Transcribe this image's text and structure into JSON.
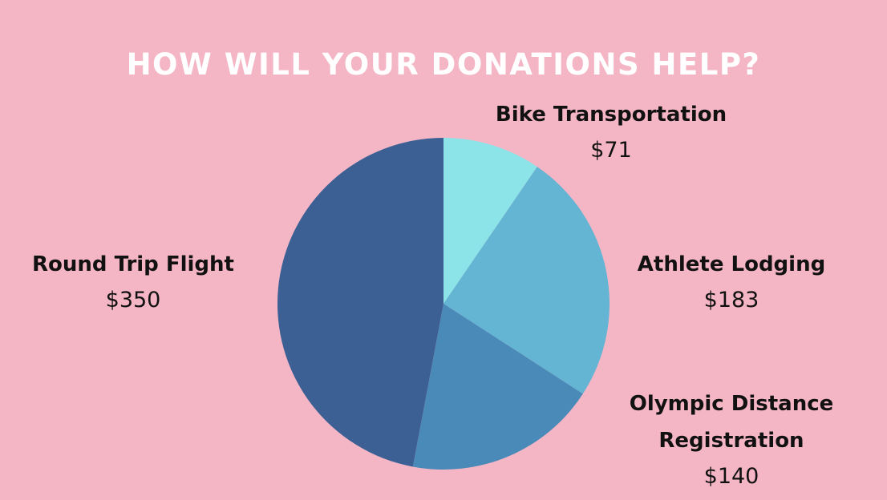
{
  "title": "HOW WILL YOUR DONATIONS HELP?",
  "chart_data": {
    "type": "pie",
    "title": "HOW WILL YOUR DONATIONS HELP?",
    "slices": [
      {
        "key": "bike",
        "label": "Bike Transportation",
        "value": 71,
        "value_label": "$71",
        "color": "#8ce3e8"
      },
      {
        "key": "lodging",
        "label": "Athlete Lodging",
        "value": 183,
        "value_label": "$183",
        "color": "#64b4d3"
      },
      {
        "key": "olympic",
        "label": "Olympic Distance Registration",
        "value": 140,
        "value_label": "$140",
        "color": "#4a8ab8"
      },
      {
        "key": "flight",
        "label": "Round Trip Flight",
        "value": 350,
        "value_label": "$350",
        "color": "#3c6094"
      }
    ],
    "start": "12 o'clock",
    "direction": "clockwise",
    "legend": "none (labels beside slices)"
  }
}
